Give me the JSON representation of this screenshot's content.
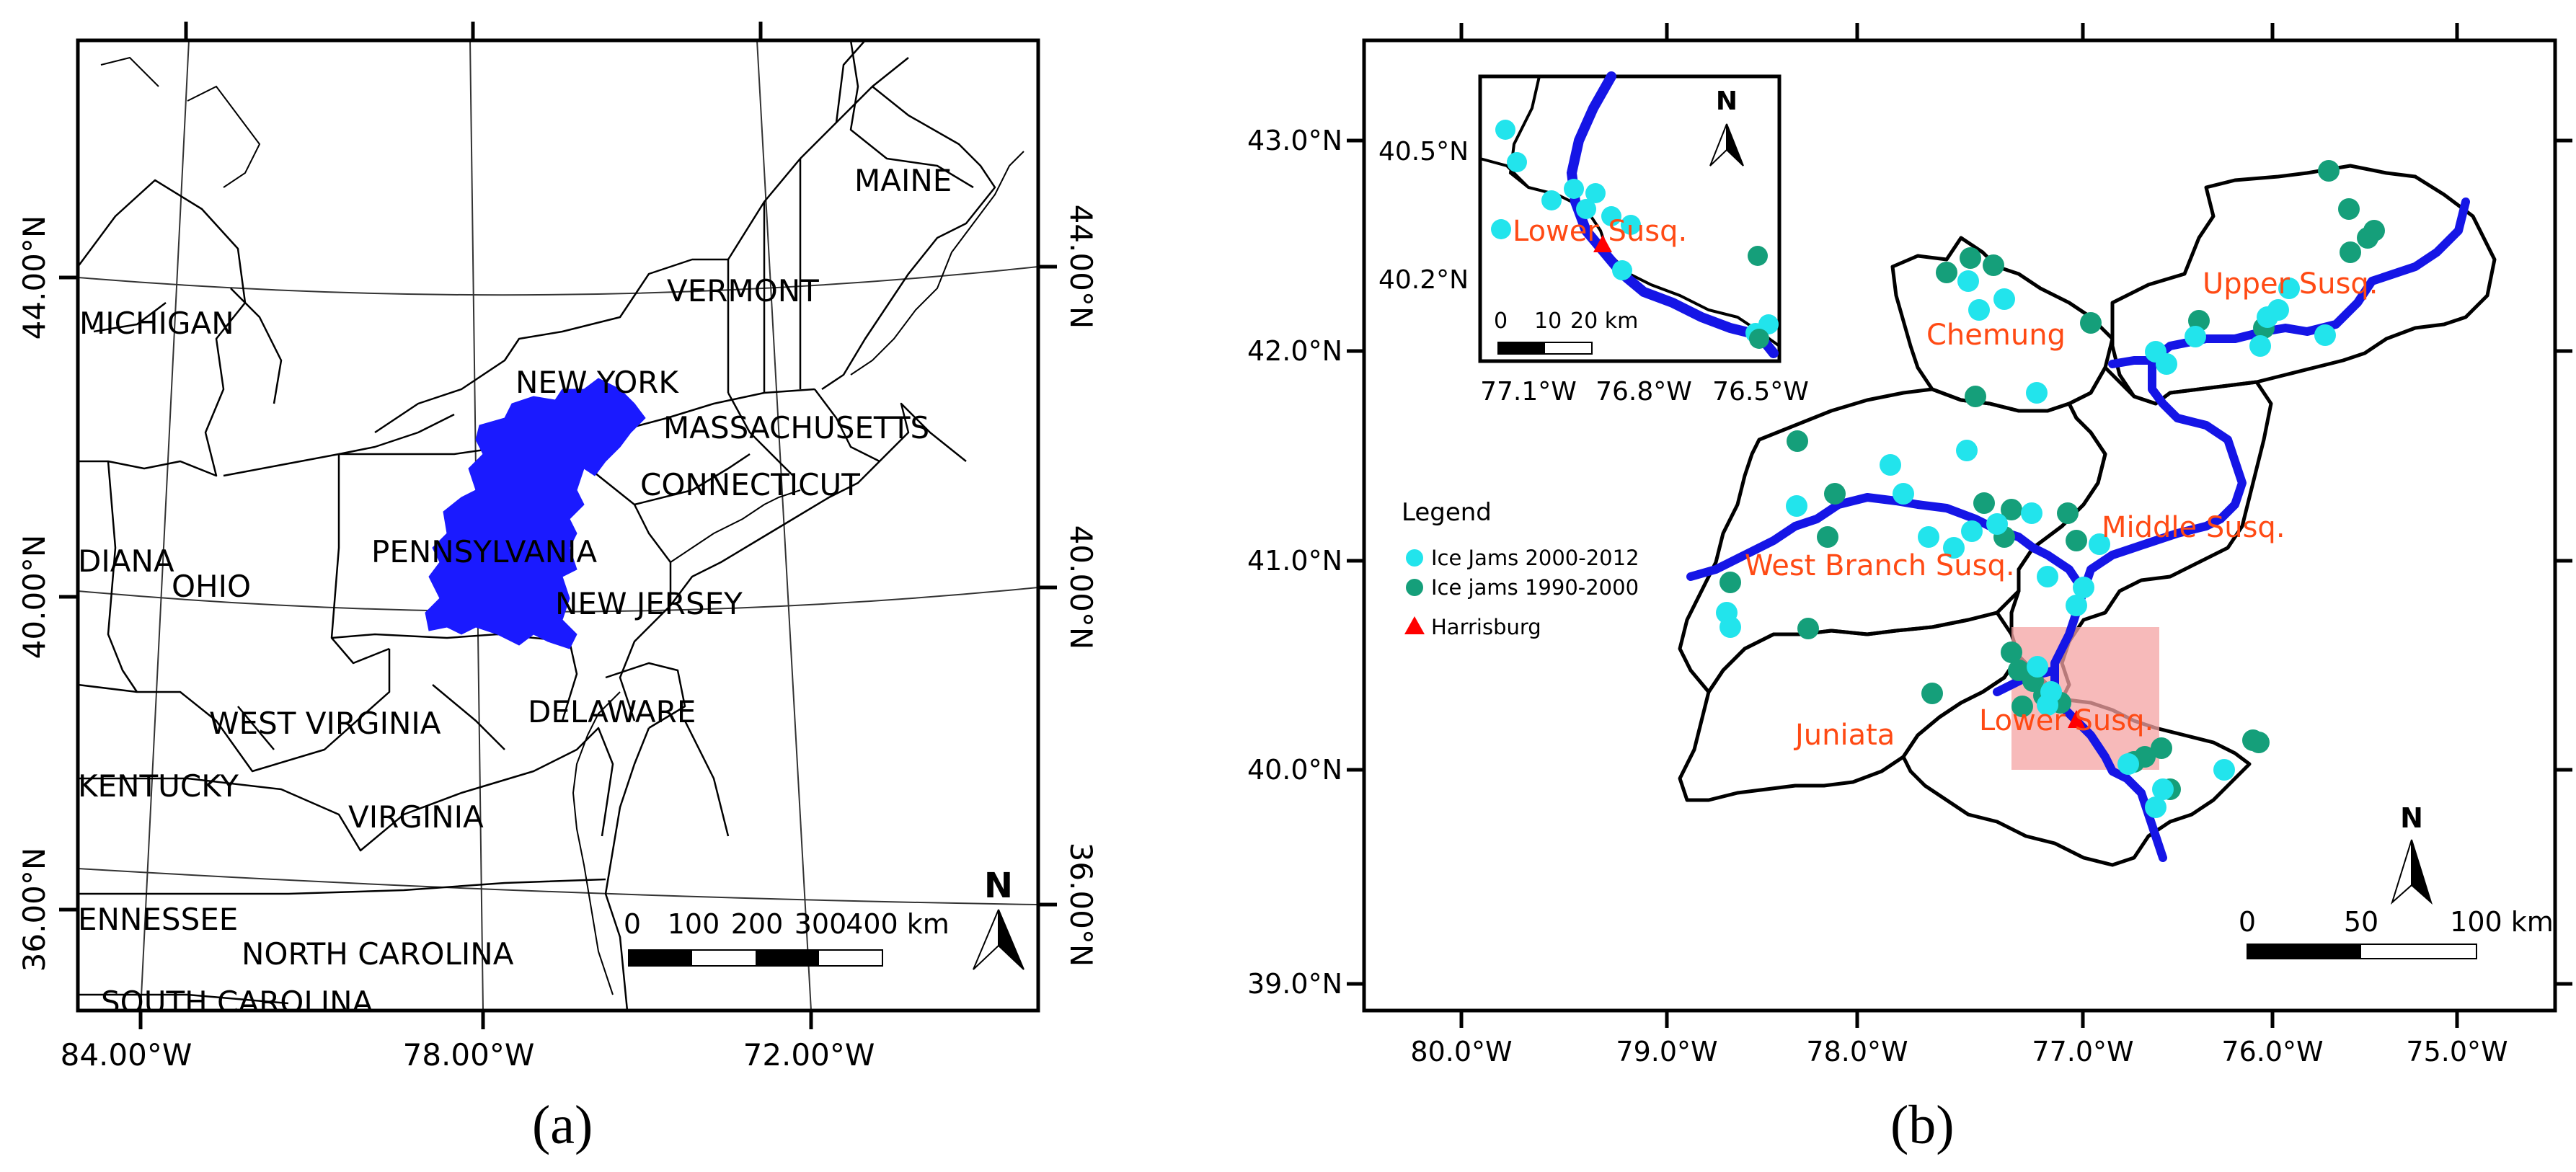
{
  "colors": {
    "basin": "#1a1aff",
    "river": "#1515e6",
    "ice_2000_2012": "#22e4ec",
    "ice_1990_2000": "#159f7a",
    "harrisburg": "#ff0000",
    "susq_label": "#ff4a14",
    "inset_box": "#f4a3a3"
  },
  "panel_a": {
    "caption": "(a)",
    "lat_labels": [
      "44.00°N",
      "40.00°N",
      "36.00°N"
    ],
    "lon_labels": [
      "84.00°W",
      "78.00°W",
      "72.00°W"
    ],
    "states": [
      "MAINE",
      "VERMONT",
      "MICHIGAN",
      "NEW YORK",
      "MASSACHUSETTS",
      "CONNECTICUT",
      "PENNSYLVANIA",
      "OHIO",
      "DIANA",
      "NEW JERSEY",
      "DELAWARE",
      "WEST VIRGINIA",
      "KENTUCKY",
      "VIRGINIA",
      "ENNESSEE",
      "NORTH CAROLINA",
      "SOUTH CAROLINA"
    ],
    "north": "N",
    "scale_labels": [
      "0",
      "100",
      "200",
      "300",
      "400 km"
    ]
  },
  "panel_b": {
    "caption": "(b)",
    "lat_labels": [
      "43.0°N",
      "42.0°N",
      "41.0°N",
      "40.0°N",
      "39.0°N"
    ],
    "lon_labels": [
      "80.0°W",
      "79.0°W",
      "78.0°W",
      "77.0°W",
      "76.0°W",
      "75.0°W"
    ],
    "basins": [
      "Chemung",
      "Upper Susq.",
      "Middle Susq.",
      "West Branch Susq.",
      "Juniata",
      "Lower Susq."
    ],
    "legend": {
      "title": "Legend",
      "items": [
        "Ice Jams 2000-2012",
        "Ice jams 1990-2000",
        "Harrisburg"
      ]
    },
    "north": "N",
    "scale_labels": [
      "0",
      "50",
      "100 km"
    ],
    "inset": {
      "lat_labels": [
        "40.5°N",
        "40.2°N"
      ],
      "lon_labels": [
        "77.1°W",
        "76.8°W",
        "76.5°W"
      ],
      "label": "Lower Susq.",
      "north": "N",
      "scale_labels": [
        "0",
        "10",
        "20 km"
      ]
    }
  }
}
